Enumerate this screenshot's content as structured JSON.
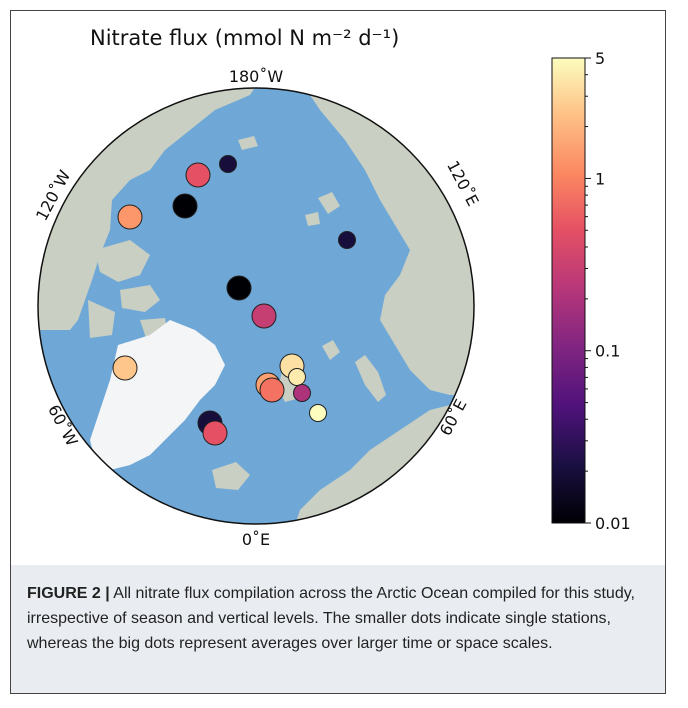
{
  "map": {
    "title": "Nitrate flux (mmol N m⁻² d⁻¹)",
    "projection": "north-polar-stereographic",
    "ocean_color": "#6fa8d6",
    "land_color": "#c9cfc3",
    "ice_color": "#f4f5f7",
    "longitude_labels": {
      "top": "180˚W",
      "bottom": "0˚E",
      "upper_left": "120˚W",
      "upper_right": "120˚E",
      "lower_left": "60˚W",
      "lower_right": "60˚E"
    },
    "stations": [
      {
        "flux": 1.3,
        "size": "big"
      },
      {
        "flux": 0.02,
        "size": "small"
      },
      {
        "flux": 0.5,
        "size": "big"
      },
      {
        "flux": 0.01,
        "size": "big"
      },
      {
        "flux": 0.02,
        "size": "small"
      },
      {
        "flux": 0.01,
        "size": "big"
      },
      {
        "flux": 0.3,
        "size": "big"
      },
      {
        "flux": 2.5,
        "size": "big"
      },
      {
        "flux": 3.5,
        "size": "big"
      },
      {
        "flux": 4.0,
        "size": "small"
      },
      {
        "flux": 1.5,
        "size": "big"
      },
      {
        "flux": 0.8,
        "size": "big"
      },
      {
        "flux": 0.2,
        "size": "small"
      },
      {
        "flux": 5.0,
        "size": "small"
      },
      {
        "flux": 0.02,
        "size": "big"
      },
      {
        "flux": 0.5,
        "size": "big"
      }
    ]
  },
  "colorbar": {
    "scale": "log",
    "range": [
      0.01,
      5
    ],
    "colormap": "magma",
    "ticks": [
      "5",
      "1",
      "0.1",
      "0.01"
    ]
  },
  "caption": {
    "label": "FIGURE 2 |",
    "text": " All nitrate flux compilation across the Arctic Ocean compiled for this study, irrespective of season and vertical levels. The smaller dots indicate single stations, whereas the big dots represent averages over larger time or space scales."
  }
}
